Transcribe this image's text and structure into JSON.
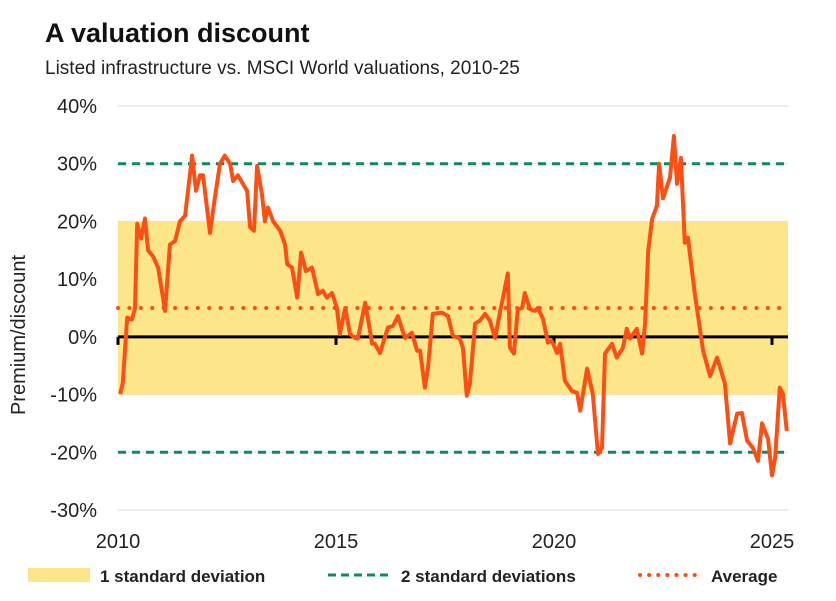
{
  "chart_data": {
    "type": "line",
    "title": "A valuation discount",
    "subtitle": "Listed infrastructure vs. MSCI World valuations, 2010-25",
    "xlabel": "",
    "ylabel": "Premium/discount",
    "xlim": [
      2010,
      2025.35
    ],
    "ylim": [
      -30,
      40
    ],
    "x_ticks": [
      "2010",
      "2015",
      "2020",
      "2025"
    ],
    "y_ticks": [
      "40%",
      "30%",
      "20%",
      "10%",
      "0%",
      "-10%",
      "-20%",
      "-30%"
    ],
    "grid": true,
    "legend_position": "bottom",
    "legend": {
      "band": "1 standard deviation",
      "two_sd": "2 standard deviations",
      "avg": "Average"
    },
    "band": [
      -10,
      20
    ],
    "two_sd": [
      30,
      -20
    ],
    "average": 5,
    "colors": {
      "line": "#fc4f14",
      "band": "#fde68a",
      "two_sd": "#0e8a5c",
      "avg": "#fc4f14",
      "zero": "#000000",
      "grid": "#dddddd"
    },
    "series": [
      {
        "x": [
          2010.05,
          2010.11,
          2010.21,
          2010.32,
          2010.39,
          2010.44,
          2010.53,
          2010.62,
          2010.69,
          2010.8,
          2010.92,
          2011.08,
          2011.19,
          2011.31,
          2011.42,
          2011.54,
          2011.7,
          2011.79,
          2011.88,
          2011.95,
          2012.11,
          2012.22,
          2012.34,
          2012.45,
          2012.57,
          2012.64,
          2012.75,
          2012.96,
          2013.03,
          2013.12,
          2013.19,
          2013.3,
          2013.37,
          2013.44,
          2013.56,
          2013.72,
          2013.83,
          2013.88,
          2013.99,
          2014.11,
          2014.2,
          2014.31,
          2014.45,
          2014.59,
          2014.7,
          2014.79,
          2014.91,
          2015.02,
          2015.09,
          2015.21,
          2015.32,
          2015.44,
          2015.5,
          2015.67,
          2015.83,
          2015.89,
          2016.01,
          2016.19,
          2016.31,
          2016.42,
          2016.58,
          2016.74,
          2016.86,
          2016.93,
          2017.04,
          2017.11,
          2017.22,
          2017.43,
          2017.57,
          2017.68,
          2017.84,
          2017.91,
          2018.0,
          2018.07,
          2018.19,
          2018.3,
          2018.42,
          2018.53,
          2018.65,
          2018.76,
          2018.83,
          2018.94,
          2018.99,
          2019.08,
          2019.17,
          2019.27,
          2019.33,
          2019.45,
          2019.56,
          2019.63,
          2019.75,
          2019.86,
          2019.95,
          2020.07,
          2020.14,
          2020.25,
          2020.41,
          2020.53,
          2020.6,
          2020.76,
          2020.89,
          2021.01,
          2021.1,
          2021.17,
          2021.33,
          2021.44,
          2021.58,
          2021.67,
          2021.74,
          2021.9,
          2022.02,
          2022.09,
          2022.16,
          2022.25,
          2022.36,
          2022.41,
          2022.5,
          2022.66,
          2022.75,
          2022.82,
          2022.91,
          2023.0,
          2023.07,
          2023.23,
          2023.42,
          2023.58,
          2023.74,
          2023.92,
          2024.04,
          2024.2,
          2024.31,
          2024.43,
          2024.56,
          2024.68,
          2024.77,
          2024.91,
          2025.0,
          2025.07,
          2025.18,
          2025.25,
          2025.34
        ],
        "y": [
          -9.9,
          -8,
          3.3,
          3,
          5,
          19.6,
          17,
          20.5,
          15,
          14,
          12,
          4.5,
          16,
          16.6,
          20,
          21,
          31.4,
          25.3,
          28,
          28,
          18,
          24,
          30,
          31.4,
          30,
          27,
          28,
          25.3,
          19,
          18.4,
          29.6,
          24.8,
          20,
          22.4,
          20,
          18.4,
          16,
          12.6,
          12,
          6.8,
          14.6,
          11.4,
          12,
          7.4,
          8,
          6.8,
          7.6,
          5,
          0.5,
          5,
          0.5,
          -0.2,
          -0.3,
          5.9,
          -1.2,
          -1.2,
          -2.8,
          1.6,
          1.9,
          3.6,
          -0.2,
          0.7,
          -2.4,
          -2.4,
          -8.8,
          -5.4,
          4,
          4.2,
          3.6,
          0.2,
          -0.3,
          -1.9,
          -10.2,
          -8.1,
          2.3,
          2.8,
          4,
          2.8,
          -0.2,
          4.2,
          6.8,
          11,
          -1.9,
          -2.9,
          4.8,
          5,
          7.6,
          4.8,
          4.5,
          5,
          3.1,
          -1,
          -0.7,
          -2.8,
          -1.2,
          -7.6,
          -9.4,
          -9.7,
          -12.8,
          -5.5,
          -9.9,
          -20.3,
          -19.2,
          -2.9,
          -1.2,
          -3.6,
          -1.9,
          1.4,
          -0.3,
          1.4,
          -2.9,
          2.3,
          14.9,
          20.4,
          22.7,
          30,
          24,
          27.6,
          34.8,
          26.5,
          31,
          16.3,
          17.2,
          7.5,
          -2.4,
          -6.8,
          -3.6,
          -8.1,
          -18.5,
          -13.3,
          -13.2,
          -18,
          -19.2,
          -21.5,
          -15,
          -17.7,
          -24,
          -21,
          -8.8,
          -9.9,
          -16.3
        ]
      }
    ]
  }
}
